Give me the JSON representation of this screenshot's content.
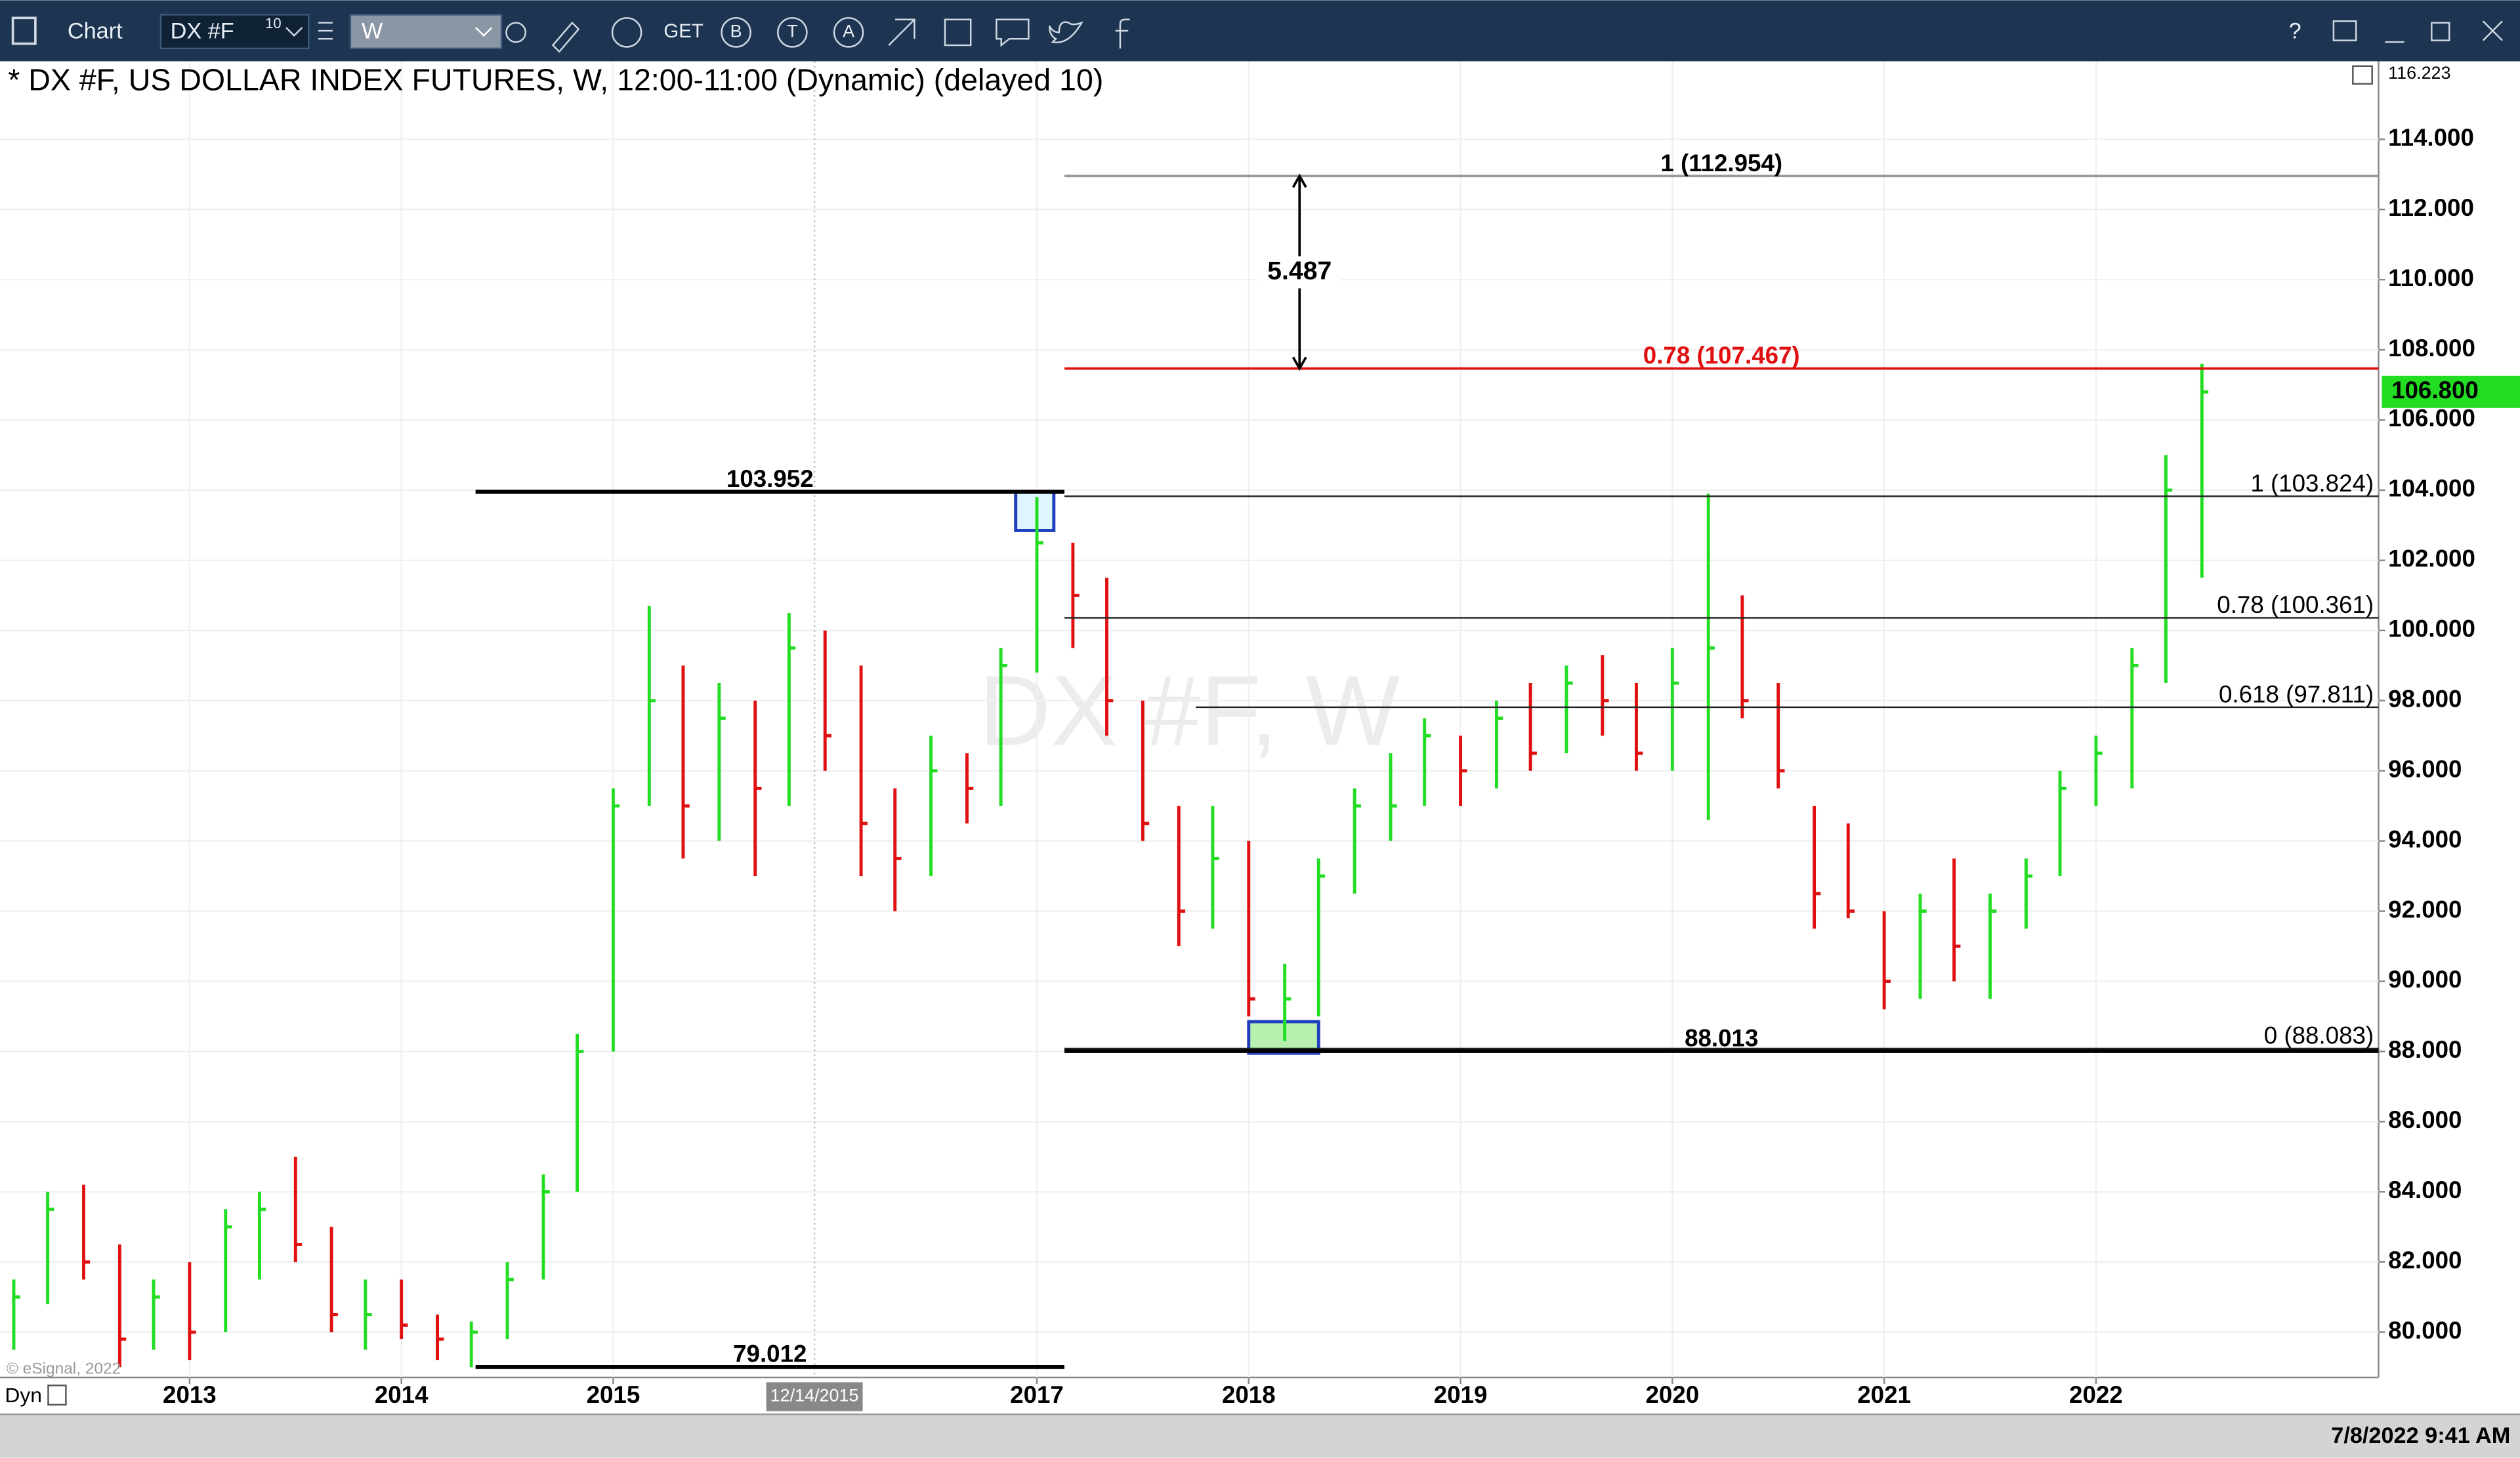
{
  "toolbar": {
    "app": "Chart",
    "symbol": "DX #F",
    "symbol_badge": "10",
    "interval": "W",
    "get": "GET",
    "icons": [
      "B",
      "T",
      "A"
    ],
    "help": "?"
  },
  "status": {
    "mode": "Dyn",
    "datetime": "7/8/2022 9:41 AM"
  },
  "chart_data": {
    "type": "ohlc",
    "title": "* DX #F, US DOLLAR INDEX FUTURES, W, 12:00-11:00 (Dynamic) (delayed 10)",
    "watermark": "DX #F, W",
    "copyright": "© eSignal, 2022",
    "x": [
      2012.17,
      2012.33,
      2012.5,
      2012.67,
      2012.83,
      2013.0,
      2013.17,
      2013.33,
      2013.5,
      2013.67,
      2013.83,
      2014.0,
      2014.17,
      2014.33,
      2014.5,
      2014.67,
      2014.83,
      2015.0,
      2015.17,
      2015.33,
      2015.5,
      2015.67,
      2015.83,
      2016.0,
      2016.17,
      2016.33,
      2016.5,
      2016.67,
      2016.83,
      2017.0,
      2017.17,
      2017.33,
      2017.5,
      2017.67,
      2017.83,
      2018.0,
      2018.17,
      2018.33,
      2018.5,
      2018.67,
      2018.83,
      2019.0,
      2019.17,
      2019.33,
      2019.5,
      2019.67,
      2019.83,
      2020.0,
      2020.17,
      2020.33,
      2020.5,
      2020.67,
      2020.83,
      2021.0,
      2021.17,
      2021.33,
      2021.5,
      2021.67,
      2021.83,
      2022.0,
      2022.17,
      2022.33,
      2022.5
    ],
    "series": [
      {
        "name": "high",
        "values": [
          81.5,
          84,
          84.2,
          82.5,
          81.5,
          82,
          83.5,
          84,
          85,
          83,
          81.5,
          81.5,
          80.5,
          80.3,
          82,
          84.5,
          88.5,
          95.5,
          100.7,
          99,
          98.5,
          98,
          100.5,
          100,
          99,
          95.5,
          97,
          96.5,
          99.5,
          103.8,
          102.5,
          101.5,
          98,
          95,
          95,
          94,
          90.5,
          93.5,
          95.5,
          96.5,
          97.5,
          97,
          98,
          98.5,
          99,
          99.3,
          98.5,
          99.5,
          103.9,
          101,
          98.5,
          95,
          94.5,
          92,
          92.5,
          93.5,
          92.5,
          93.5,
          96,
          97,
          99.5,
          105,
          107.6
        ]
      },
      {
        "name": "low",
        "values": [
          79.5,
          80.8,
          81.5,
          79,
          79.5,
          79.2,
          80,
          81.5,
          82,
          80,
          79.5,
          79.8,
          79.2,
          79,
          79.8,
          81.5,
          84,
          88,
          95,
          93.5,
          94,
          93,
          95,
          96,
          93,
          92,
          93,
          94.5,
          95,
          98.8,
          99.5,
          97,
          94,
          91,
          91.5,
          89,
          88.3,
          89,
          92.5,
          94,
          95,
          95,
          95.5,
          96,
          96.5,
          97,
          96,
          96,
          94.6,
          97.5,
          95.5,
          91.5,
          91.8,
          89.2,
          89.5,
          90,
          89.5,
          91.5,
          93,
          95,
          95.5,
          98.5,
          101.5
        ]
      },
      {
        "name": "close",
        "values": [
          81,
          83.5,
          82,
          79.8,
          81,
          80,
          83,
          83.5,
          82.5,
          80.5,
          80.5,
          80.2,
          79.8,
          80,
          81.5,
          84,
          88,
          95,
          98,
          95,
          97.5,
          95.5,
          99.5,
          97,
          94.5,
          93.5,
          96,
          95.5,
          99,
          102.5,
          101,
          98,
          94.5,
          92,
          93.5,
          89.5,
          89.5,
          93,
          95,
          95,
          97,
          96,
          97.5,
          96.5,
          98.5,
          98,
          96.5,
          98.5,
          99.5,
          98,
          96,
          92.5,
          92,
          90,
          92,
          91,
          92,
          93,
          95.5,
          96.5,
          99,
          104,
          106.8
        ]
      }
    ],
    "up_color": "#22dd22",
    "down_color": "#e01010",
    "xlim": [
      2012.105,
      2023.334
    ],
    "xticks": [
      2013,
      2014,
      2015,
      2017,
      2018,
      2019,
      2020,
      2021,
      2022
    ],
    "ylim": [
      78.71,
      116.223
    ],
    "yticks": [
      {
        "value": 80,
        "label": "80.000"
      },
      {
        "value": 82,
        "label": "82.000"
      },
      {
        "value": 84,
        "label": "84.000"
      },
      {
        "value": 86,
        "label": "86.000"
      },
      {
        "value": 88,
        "label": "88.000"
      },
      {
        "value": 90,
        "label": "90.000"
      },
      {
        "value": 92,
        "label": "92.000"
      },
      {
        "value": 94,
        "label": "94.000"
      },
      {
        "value": 96,
        "label": "96.000"
      },
      {
        "value": 98,
        "label": "98.000"
      },
      {
        "value": 100,
        "label": "100.000"
      },
      {
        "value": 102,
        "label": "102.000"
      },
      {
        "value": 104,
        "label": "104.000"
      },
      {
        "value": 106,
        "label": "106.000"
      },
      {
        "value": 108,
        "label": "108.000"
      },
      {
        "value": 110,
        "label": "110.000"
      },
      {
        "value": 112,
        "label": "112.000"
      },
      {
        "value": 114,
        "label": "114.000"
      }
    ],
    "grid": true,
    "last_price": {
      "value": 106.8,
      "label": "106.800",
      "color": "#22dd22"
    },
    "cursor": {
      "x": 2015.95,
      "label": "12/14/2015"
    },
    "levels": [
      {
        "value": 103.952,
        "from": 2014.35,
        "to": 2017.13
      },
      {
        "value": 79.012,
        "from": 2014.35,
        "to": 2017.13
      },
      {
        "value": 88.013,
        "from": 2017.13,
        "to": 2023.334
      }
    ],
    "extension_levels": [
      {
        "value": 112.954,
        "label": "1 (112.954)",
        "from": 2017.13,
        "color": "#999999",
        "text_color": "#000000"
      },
      {
        "value": 107.467,
        "label": "0.78 (107.467)",
        "from": 2017.13,
        "color": "#e01010",
        "text_color": "#e01010"
      }
    ],
    "fib_levels": [
      {
        "value": 103.824,
        "label": "1 (103.824)",
        "from": 2017.13
      },
      {
        "value": 100.361,
        "label": "0.78 (100.361)",
        "from": 2017.13
      },
      {
        "value": 97.811,
        "label": "0.618 (97.811)",
        "from": 2017.75
      },
      {
        "value": 88.083,
        "label": "0 (88.083)",
        "from": 2017.13
      }
    ],
    "measure": {
      "x": 2018.24,
      "value": 5.487
    },
    "highlights": [
      {
        "x": [
          2016.9,
          2017.08
        ],
        "y": [
          102.85,
          103.95
        ],
        "fill": "#dff5ff"
      },
      {
        "x": [
          2018.0,
          2018.33
        ],
        "y": [
          87.95,
          88.85
        ],
        "fill": "#b8f0b0"
      }
    ]
  }
}
